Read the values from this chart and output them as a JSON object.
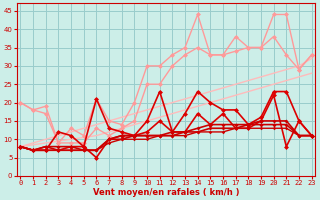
{
  "title": "",
  "xlabel": "Vent moyen/en rafales ( km/h )",
  "ylabel": "",
  "background_color": "#cceee8",
  "grid_color": "#99cccc",
  "x_values": [
    0,
    1,
    2,
    3,
    4,
    5,
    6,
    7,
    8,
    9,
    10,
    11,
    12,
    13,
    14,
    15,
    16,
    17,
    18,
    19,
    20,
    21,
    22,
    23
  ],
  "series": [
    {
      "y": [
        8,
        9,
        10,
        11,
        12,
        13,
        14,
        15,
        16,
        17,
        18,
        19,
        20,
        21,
        22,
        23,
        24,
        25,
        26,
        27,
        28,
        29,
        30,
        32
      ],
      "color": "#ffbbbb",
      "lw": 1.0,
      "marker": null,
      "ms": 0
    },
    {
      "y": [
        8,
        8.5,
        9,
        9.5,
        10,
        10.5,
        11,
        12,
        13,
        14,
        15,
        16,
        17,
        18,
        19,
        20,
        21,
        22,
        23,
        24,
        25,
        26,
        27,
        28
      ],
      "color": "#ffbbbb",
      "lw": 1.0,
      "marker": null,
      "ms": 0
    },
    {
      "y": [
        20,
        18,
        19,
        9,
        13,
        11,
        21,
        15,
        14,
        20,
        30,
        30,
        33,
        35,
        44,
        33,
        33,
        38,
        35,
        35,
        44,
        44,
        29,
        33
      ],
      "color": "#ff9999",
      "lw": 1.0,
      "marker": "D",
      "ms": 2.5
    },
    {
      "y": [
        20,
        18,
        17,
        9,
        9,
        9,
        13,
        11,
        13,
        15,
        25,
        25,
        30,
        33,
        35,
        33,
        33,
        34,
        35,
        35,
        38,
        33,
        29,
        33
      ],
      "color": "#ff9999",
      "lw": 1.0,
      "marker": "D",
      "ms": 2.5
    },
    {
      "y": [
        8,
        7,
        7,
        12,
        11,
        8,
        21,
        13,
        12,
        11,
        15,
        23,
        12,
        17,
        23,
        20,
        18,
        18,
        14,
        16,
        23,
        23,
        15,
        11
      ],
      "color": "#dd0000",
      "lw": 1.2,
      "marker": "D",
      "ms": 2.5
    },
    {
      "y": [
        8,
        7,
        7,
        7,
        8,
        8,
        5,
        10,
        11,
        11,
        12,
        15,
        12,
        12,
        17,
        14,
        17,
        13,
        13,
        15,
        22,
        8,
        15,
        11
      ],
      "color": "#dd0000",
      "lw": 1.2,
      "marker": "D",
      "ms": 2.5
    },
    {
      "y": [
        8,
        7,
        8,
        8,
        8,
        7,
        7,
        10,
        11,
        11,
        11,
        11,
        12,
        12,
        13,
        14,
        14,
        14,
        14,
        15,
        15,
        15,
        11,
        11
      ],
      "color": "#cc0000",
      "lw": 1.2,
      "marker": "D",
      "ms": 2.0
    },
    {
      "y": [
        8,
        7,
        8,
        7,
        7,
        7,
        7,
        10,
        10,
        11,
        11,
        11,
        11,
        12,
        12,
        13,
        13,
        13,
        14,
        14,
        14,
        14,
        11,
        11
      ],
      "color": "#cc0000",
      "lw": 1.2,
      "marker": "D",
      "ms": 2.0
    },
    {
      "y": [
        8,
        7,
        7,
        7,
        7,
        7,
        7,
        9,
        10,
        10,
        10,
        11,
        11,
        11,
        12,
        12,
        12,
        13,
        13,
        13,
        13,
        13,
        11,
        11
      ],
      "color": "#cc0000",
      "lw": 1.0,
      "marker": "D",
      "ms": 1.8
    }
  ],
  "xlim": [
    -0.3,
    23.3
  ],
  "ylim": [
    0,
    47
  ],
  "yticks": [
    0,
    5,
    10,
    15,
    20,
    25,
    30,
    35,
    40,
    45
  ],
  "xticks": [
    0,
    1,
    2,
    3,
    4,
    5,
    6,
    7,
    8,
    9,
    10,
    11,
    12,
    13,
    14,
    15,
    16,
    17,
    18,
    19,
    20,
    21,
    22,
    23
  ]
}
